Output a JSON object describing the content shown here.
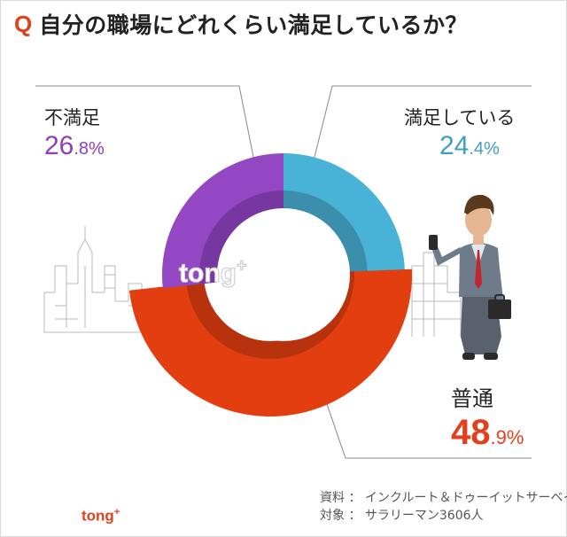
{
  "title": {
    "q": "Q",
    "text": "自分の職場にどれくらい満足しているか？"
  },
  "chart_data": {
    "type": "pie",
    "variant": "donut",
    "categories": [
      "満足している",
      "普通",
      "不満足"
    ],
    "values": [
      24.4,
      48.9,
      26.8
    ],
    "value_labels": [
      {
        "big": "24",
        "small": ".4%"
      },
      {
        "big": "48",
        "small": ".9%"
      },
      {
        "big": "26",
        "small": ".8%"
      }
    ],
    "colors": [
      "#48b3d6",
      "#e23e0f",
      "#9447c2"
    ],
    "inner_colors": [
      "#3b8fac",
      "#b8320e",
      "#7637a0"
    ],
    "label_colors": [
      "#3f9fc2",
      "#e2401c",
      "#8e3fb8"
    ]
  },
  "watermark": {
    "text": "tong",
    "plus": "+"
  },
  "source": {
    "line1": "資料 ： インクルート＆ドゥーイットサーベイ",
    "line2": "対象 ： サラリーマン3606人"
  },
  "footer_logo": {
    "text": "tong",
    "plus": "+"
  }
}
